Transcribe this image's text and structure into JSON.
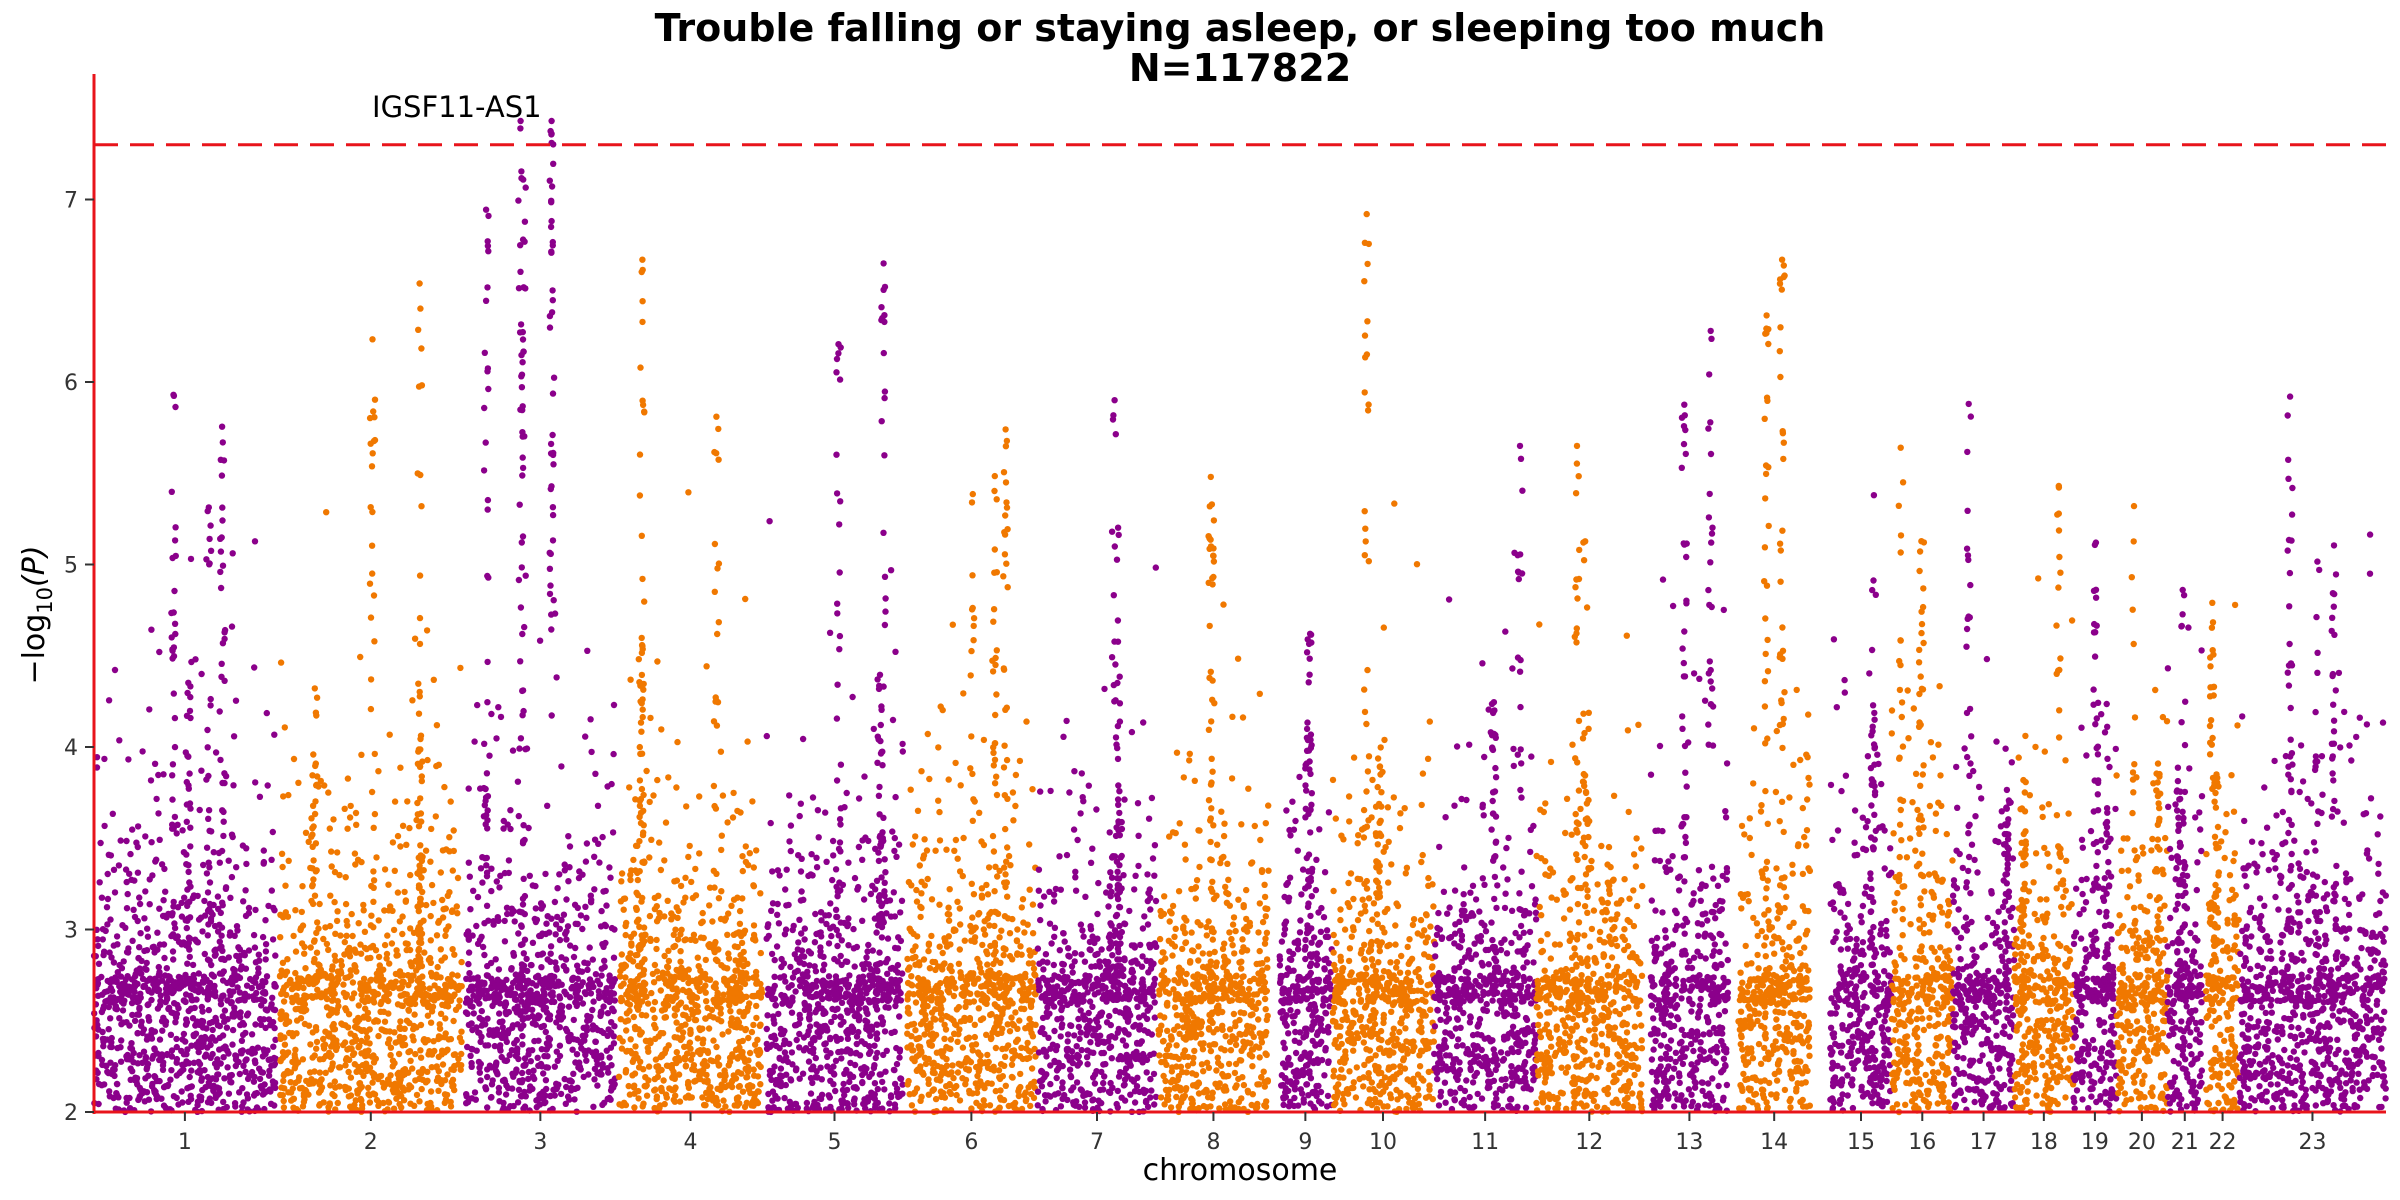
{
  "chart_data": {
    "type": "scatter",
    "subtype": "manhattan",
    "title": "Trouble falling or staying asleep, or sleeping too much",
    "subtitle": "N=117822",
    "xlabel": "chromosome",
    "ylabel_prefix": "−log",
    "ylabel_sub": "10",
    "ylabel_suffix": "(P)",
    "ylim": [
      2,
      7.6
    ],
    "yticks": [
      2,
      3,
      4,
      5,
      6,
      7
    ],
    "grid": false,
    "significance_threshold": 7.3,
    "threshold_color": "#e8141b",
    "axis_color": "#e8141b",
    "colors": [
      "#8b008b",
      "#f07800"
    ],
    "chromosomes": [
      {
        "label": "1",
        "start": 0,
        "end": 89,
        "max": 5.93
      },
      {
        "label": "2",
        "start": 91,
        "end": 180,
        "max": 6.54
      },
      {
        "label": "3",
        "start": 182,
        "end": 255,
        "max": 7.43
      },
      {
        "label": "4",
        "start": 257,
        "end": 327,
        "max": 6.67
      },
      {
        "label": "5",
        "start": 329,
        "end": 396,
        "max": 6.65
      },
      {
        "label": "6",
        "start": 398,
        "end": 461,
        "max": 5.74
      },
      {
        "label": "7",
        "start": 462,
        "end": 520,
        "max": 5.9
      },
      {
        "label": "8",
        "start": 521,
        "end": 575,
        "max": 5.48
      },
      {
        "label": "9",
        "start": 580,
        "end": 606,
        "max": 4.62
      },
      {
        "label": "10",
        "start": 606,
        "end": 656,
        "max": 6.92
      },
      {
        "label": "11",
        "start": 656,
        "end": 706,
        "max": 5.65
      },
      {
        "label": "12",
        "start": 706,
        "end": 758,
        "max": 5.65
      },
      {
        "label": "13",
        "start": 762,
        "end": 800,
        "max": 6.28
      },
      {
        "label": "14",
        "start": 805,
        "end": 840,
        "max": 6.67
      },
      {
        "label": "15",
        "start": 850,
        "end": 880,
        "max": 5.38
      },
      {
        "label": "16",
        "start": 880,
        "end": 910,
        "max": 5.64
      },
      {
        "label": "17",
        "start": 910,
        "end": 940,
        "max": 5.88
      },
      {
        "label": "18",
        "start": 940,
        "end": 969,
        "max": 5.43
      },
      {
        "label": "19",
        "start": 969,
        "end": 990,
        "max": 5.12
      },
      {
        "label": "20",
        "start": 990,
        "end": 1015,
        "max": 5.32
      },
      {
        "label": "21",
        "start": 1015,
        "end": 1032,
        "max": 4.86
      },
      {
        "label": "22",
        "start": 1034,
        "end": 1050,
        "max": 4.79
      },
      {
        "label": "23",
        "start": 1050,
        "end": 1122,
        "max": 5.92
      }
    ],
    "annotations": [
      {
        "text": "IGSF11-AS1",
        "chromosome": "3",
        "x": 224,
        "y": 7.43
      }
    ]
  }
}
